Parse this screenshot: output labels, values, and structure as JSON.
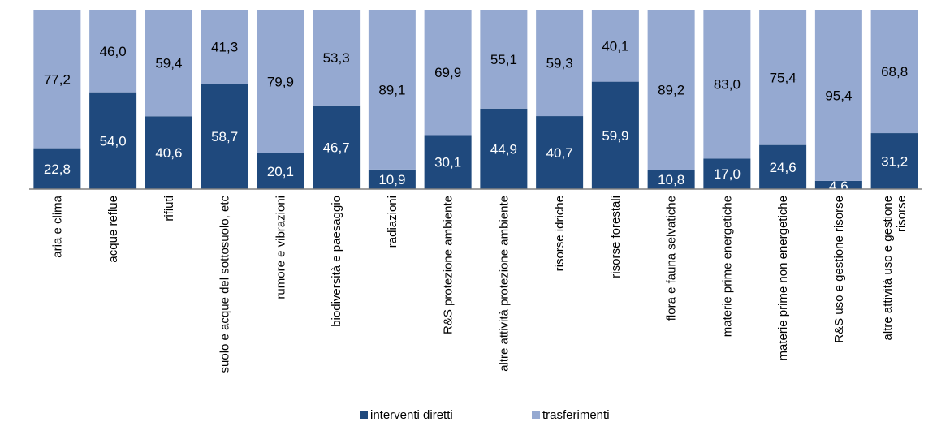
{
  "chart_data": {
    "type": "bar",
    "stacked": true,
    "percent_stacked": true,
    "categories": [
      [
        "aria e clima"
      ],
      [
        "acque reflue"
      ],
      [
        "rifiuti"
      ],
      [
        "suolo e acque del sottosuolo, etc"
      ],
      [
        "rumore e vibrazioni"
      ],
      [
        "biodiversità e paesaggio"
      ],
      [
        "radiazioni"
      ],
      [
        "R&S protezione ambiente"
      ],
      [
        "altre attività protezione ambiente"
      ],
      [
        "risorse idriche"
      ],
      [
        "risorse forestali"
      ],
      [
        "flora e fauna selvatiche"
      ],
      [
        "materie prime energetiche"
      ],
      [
        "materie prime non energetiche"
      ],
      [
        "R&S uso e gestione risorse"
      ],
      [
        "altre attività uso e gestione",
        "risorse"
      ]
    ],
    "series": [
      {
        "name": "interventi diretti",
        "color": "#1f497d",
        "values": [
          22.8,
          54.0,
          40.6,
          58.7,
          20.1,
          46.7,
          10.9,
          30.1,
          44.9,
          40.7,
          59.9,
          10.8,
          17.0,
          24.6,
          4.6,
          31.2
        ],
        "labels": [
          "22,8",
          "54,0",
          "40,6",
          "58,7",
          "20,1",
          "46,7",
          "10,9",
          "30,1",
          "44,9",
          "40,7",
          "59,9",
          "10,8",
          "17,0",
          "24,6",
          "4,6",
          "31,2"
        ],
        "label_color": "#ffffff"
      },
      {
        "name": "trasferimenti",
        "color": "#95a9d1",
        "values": [
          77.2,
          46.0,
          59.4,
          41.3,
          79.9,
          53.3,
          89.1,
          69.9,
          55.1,
          59.3,
          40.1,
          89.2,
          83.0,
          75.4,
          95.4,
          68.8
        ],
        "labels": [
          "77,2",
          "46,0",
          "59,4",
          "41,3",
          "79,9",
          "53,3",
          "89,1",
          "69,9",
          "55,1",
          "59,3",
          "40,1",
          "89,2",
          "83,0",
          "75,4",
          "95,4",
          "68,8"
        ],
        "label_color": "#000000"
      }
    ],
    "ylim": [
      0,
      100
    ],
    "grid": false,
    "legend_position": "bottom"
  }
}
